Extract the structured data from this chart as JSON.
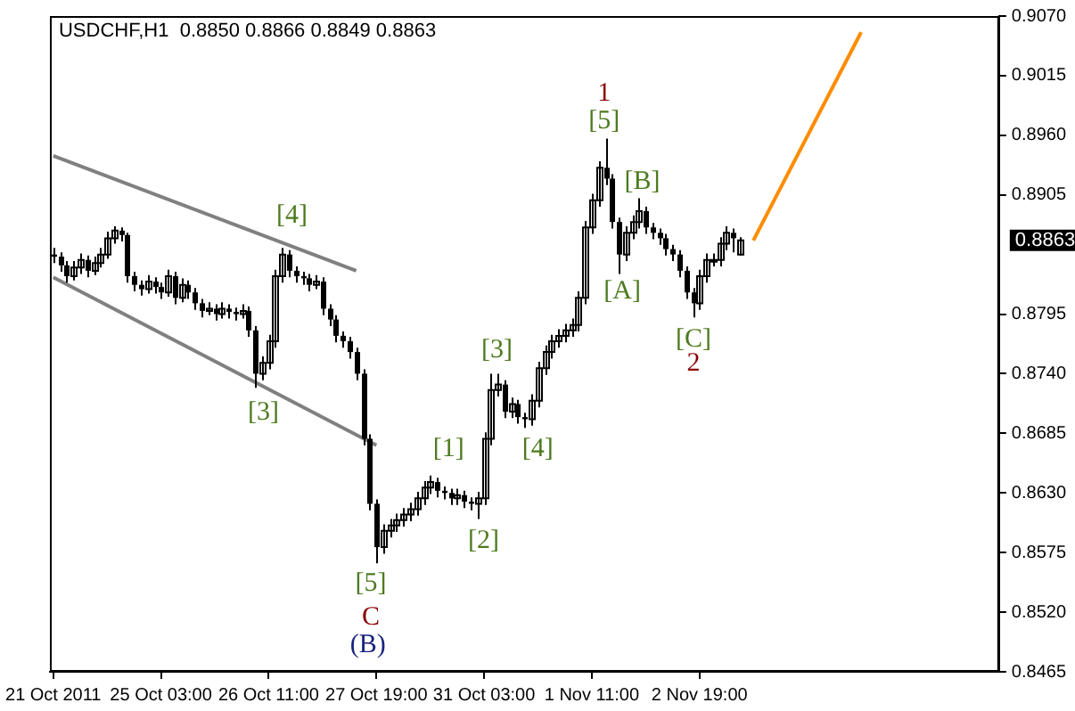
{
  "chart_data": {
    "type": "candlestick",
    "title": "USDCHF,H1  0.8850 0.8866 0.8849 0.8863",
    "color": "#000000",
    "categories": [
      "21 Oct 2011",
      null,
      null,
      null,
      null,
      null,
      null,
      null,
      null,
      null,
      null,
      null,
      null,
      null,
      null,
      null,
      "25 Oct 03:00",
      null,
      null,
      null,
      null,
      null,
      null,
      null,
      null,
      null,
      null,
      null,
      null,
      null,
      null,
      null,
      "26 Oct 11:00",
      null,
      null,
      null,
      null,
      null,
      null,
      null,
      null,
      null,
      null,
      null,
      null,
      null,
      null,
      null,
      "27 Oct 19:00",
      null,
      null,
      null,
      null,
      null,
      null,
      null,
      null,
      null,
      null,
      null,
      null,
      null,
      null,
      null,
      "31 Oct 03:00",
      null,
      null,
      null,
      null,
      null,
      null,
      null,
      null,
      null,
      null,
      null,
      null,
      null,
      null,
      null,
      "1 Nov 11:00",
      null,
      null,
      null,
      null,
      null,
      null,
      null,
      null,
      null,
      null,
      null,
      null,
      null,
      null,
      null,
      "2 Nov 19:00",
      null,
      null,
      null,
      null,
      null,
      null,
      null,
      null,
      null,
      null,
      null,
      null,
      null,
      null,
      null,
      null,
      null,
      null,
      null,
      null,
      null,
      null,
      null,
      null,
      null,
      null,
      null,
      null,
      null,
      null,
      null,
      null,
      null,
      null,
      null,
      null,
      null,
      null,
      null,
      null,
      null,
      null,
      null,
      null
    ],
    "ohlc": [
      [
        0.885,
        0.8856,
        0.8842,
        0.8848
      ],
      [
        0.8848,
        0.8852,
        0.8834,
        0.884
      ],
      [
        0.884,
        0.8844,
        0.8824,
        0.883
      ],
      [
        0.883,
        0.8844,
        0.8826,
        0.8838
      ],
      [
        0.8838,
        0.8851,
        0.8832,
        0.8845
      ],
      [
        0.8845,
        0.8849,
        0.8829,
        0.8835
      ],
      [
        0.8835,
        0.8848,
        0.8831,
        0.8842
      ],
      [
        0.8842,
        0.8856,
        0.8838,
        0.885
      ],
      [
        0.885,
        0.8871,
        0.8846,
        0.8865
      ],
      [
        0.8865,
        0.8876,
        0.886,
        0.8872
      ],
      [
        0.8872,
        0.8875,
        0.8862,
        0.8868
      ],
      [
        0.8868,
        0.887,
        0.8824,
        0.883
      ],
      [
        0.883,
        0.8834,
        0.8816,
        0.8822
      ],
      [
        0.8822,
        0.8826,
        0.8812,
        0.8818
      ],
      [
        0.8818,
        0.8831,
        0.8814,
        0.8825
      ],
      [
        0.8825,
        0.8829,
        0.8814,
        0.882
      ],
      [
        0.882,
        0.8824,
        0.8809,
        0.8815
      ],
      [
        0.8815,
        0.8836,
        0.8811,
        0.883
      ],
      [
        0.883,
        0.8834,
        0.8804,
        0.881
      ],
      [
        0.881,
        0.8828,
        0.8806,
        0.8822
      ],
      [
        0.8822,
        0.8826,
        0.8809,
        0.8815
      ],
      [
        0.8815,
        0.8819,
        0.8799,
        0.8805
      ],
      [
        0.8805,
        0.8809,
        0.8792,
        0.8798
      ],
      [
        0.8798,
        0.8806,
        0.8794,
        0.88
      ],
      [
        0.88,
        0.8804,
        0.8789,
        0.8795
      ],
      [
        0.8795,
        0.8806,
        0.8791,
        0.88
      ],
      [
        0.88,
        0.8804,
        0.8791,
        0.8797
      ],
      [
        0.8797,
        0.8801,
        0.8789,
        0.8795
      ],
      [
        0.8795,
        0.8804,
        0.8791,
        0.8798
      ],
      [
        0.8798,
        0.8802,
        0.8774,
        0.878
      ],
      [
        0.878,
        0.8784,
        0.8727,
        0.874
      ],
      [
        0.874,
        0.8756,
        0.8734,
        0.875
      ],
      [
        0.875,
        0.8776,
        0.8744,
        0.877
      ],
      [
        0.877,
        0.8836,
        0.8764,
        0.883
      ],
      [
        0.883,
        0.8856,
        0.8824,
        0.885
      ],
      [
        0.885,
        0.8854,
        0.8829,
        0.8835
      ],
      [
        0.8835,
        0.8839,
        0.8824,
        0.883
      ],
      [
        0.883,
        0.8834,
        0.8822,
        0.8828
      ],
      [
        0.8828,
        0.8832,
        0.8816,
        0.8822
      ],
      [
        0.8822,
        0.8831,
        0.8818,
        0.8825
      ],
      [
        0.8825,
        0.8829,
        0.8794,
        0.88
      ],
      [
        0.88,
        0.8804,
        0.8784,
        0.879
      ],
      [
        0.879,
        0.8794,
        0.8769,
        0.8775
      ],
      [
        0.8775,
        0.8779,
        0.8764,
        0.877
      ],
      [
        0.877,
        0.8774,
        0.8754,
        0.876
      ],
      [
        0.876,
        0.8764,
        0.8734,
        0.874
      ],
      [
        0.874,
        0.8744,
        0.8674,
        0.868
      ],
      [
        0.868,
        0.8684,
        0.8614,
        0.862
      ],
      [
        0.862,
        0.8624,
        0.8565,
        0.858
      ],
      [
        0.858,
        0.8601,
        0.8574,
        0.8595
      ],
      [
        0.8595,
        0.8606,
        0.8589,
        0.86
      ],
      [
        0.86,
        0.8611,
        0.8594,
        0.8605
      ],
      [
        0.8605,
        0.8616,
        0.8599,
        0.861
      ],
      [
        0.861,
        0.8621,
        0.8604,
        0.8615
      ],
      [
        0.8615,
        0.8631,
        0.8609,
        0.8625
      ],
      [
        0.8625,
        0.8641,
        0.8619,
        0.8635
      ],
      [
        0.8635,
        0.8646,
        0.8629,
        0.864
      ],
      [
        0.864,
        0.8644,
        0.8626,
        0.8632
      ],
      [
        0.8632,
        0.8636,
        0.8624,
        0.863
      ],
      [
        0.863,
        0.8634,
        0.8619,
        0.8625
      ],
      [
        0.8625,
        0.8634,
        0.8619,
        0.8628
      ],
      [
        0.8628,
        0.8632,
        0.8616,
        0.8622
      ],
      [
        0.8622,
        0.8626,
        0.8614,
        0.862
      ],
      [
        0.862,
        0.8631,
        0.8606,
        0.8625
      ],
      [
        0.8625,
        0.8686,
        0.8619,
        0.868
      ],
      [
        0.868,
        0.874,
        0.8674,
        0.8725
      ],
      [
        0.8725,
        0.874,
        0.8719,
        0.873
      ],
      [
        0.873,
        0.8734,
        0.8699,
        0.8705
      ],
      [
        0.8705,
        0.8718,
        0.8699,
        0.8712
      ],
      [
        0.8712,
        0.8716,
        0.8694,
        0.87
      ],
      [
        0.87,
        0.8704,
        0.869,
        0.8698
      ],
      [
        0.8698,
        0.8721,
        0.8692,
        0.8715
      ],
      [
        0.8715,
        0.8751,
        0.8709,
        0.8745
      ],
      [
        0.8745,
        0.8766,
        0.8739,
        0.876
      ],
      [
        0.876,
        0.8776,
        0.8754,
        0.877
      ],
      [
        0.877,
        0.8781,
        0.8764,
        0.8775
      ],
      [
        0.8775,
        0.8786,
        0.8769,
        0.878
      ],
      [
        0.878,
        0.8791,
        0.8774,
        0.8785
      ],
      [
        0.8785,
        0.8816,
        0.8779,
        0.881
      ],
      [
        0.881,
        0.8881,
        0.8804,
        0.8875
      ],
      [
        0.8875,
        0.8906,
        0.8869,
        0.89
      ],
      [
        0.89,
        0.8936,
        0.8894,
        0.893
      ],
      [
        0.893,
        0.8957,
        0.8914,
        0.892
      ],
      [
        0.892,
        0.8924,
        0.8874,
        0.888
      ],
      [
        0.888,
        0.8884,
        0.8832,
        0.885
      ],
      [
        0.885,
        0.8876,
        0.8844,
        0.887
      ],
      [
        0.887,
        0.8886,
        0.8864,
        0.888
      ],
      [
        0.888,
        0.8902,
        0.8874,
        0.889
      ],
      [
        0.889,
        0.8894,
        0.8869,
        0.8875
      ],
      [
        0.8875,
        0.8879,
        0.8864,
        0.887
      ],
      [
        0.887,
        0.8874,
        0.8859,
        0.8865
      ],
      [
        0.8865,
        0.8869,
        0.8849,
        0.8855
      ],
      [
        0.8855,
        0.8859,
        0.8844,
        0.885
      ],
      [
        0.885,
        0.8854,
        0.8829,
        0.8835
      ],
      [
        0.8835,
        0.8839,
        0.8809,
        0.8815
      ],
      [
        0.8815,
        0.8819,
        0.8792,
        0.8805
      ],
      [
        0.8805,
        0.8836,
        0.8799,
        0.883
      ],
      [
        0.883,
        0.8851,
        0.8824,
        0.8845
      ],
      [
        0.8845,
        0.8851,
        0.8839,
        0.8845
      ],
      [
        0.8845,
        0.8866,
        0.8839,
        0.886
      ],
      [
        0.886,
        0.8876,
        0.8854,
        0.887
      ],
      [
        0.887,
        0.8874,
        0.8852,
        0.8865
      ],
      [
        0.885,
        0.8866,
        0.8849,
        0.8863
      ],
      null,
      null,
      null,
      null,
      null,
      null,
      null,
      null,
      null,
      null,
      null,
      null,
      null,
      null,
      null,
      null,
      null,
      null,
      null,
      null,
      null,
      null,
      null,
      null,
      null,
      null,
      null,
      null,
      null,
      null,
      null,
      null,
      null,
      null,
      null,
      null,
      null,
      null
    ],
    "series": [
      {
        "type": "line",
        "color": "#808080",
        "values": [
          0.8941,
          null,
          null,
          null,
          null,
          null,
          null,
          null,
          null,
          null,
          null,
          null,
          null,
          null,
          null,
          null,
          null,
          null,
          null,
          null,
          null,
          null,
          null,
          null,
          null,
          null,
          null,
          null,
          null,
          null,
          null,
          null,
          null,
          null,
          null,
          null,
          null,
          null,
          null,
          null,
          null,
          null,
          null,
          null,
          null,
          0.8835,
          null,
          null,
          null,
          null,
          null,
          null,
          null,
          null,
          null,
          null,
          null,
          null,
          null,
          null,
          null,
          null,
          null,
          null,
          null,
          null,
          null,
          null,
          null,
          null,
          null,
          null,
          null,
          null,
          null,
          null,
          null,
          null,
          null,
          null,
          null,
          null,
          null,
          null,
          null,
          null,
          null,
          null,
          null,
          null,
          null,
          null,
          null,
          null,
          null,
          null,
          null,
          null,
          null,
          null,
          null,
          null,
          null,
          null,
          null,
          null,
          null,
          null,
          null,
          null,
          null,
          null,
          null,
          null,
          null,
          null,
          null,
          null,
          null,
          null,
          null,
          null,
          null,
          null,
          null,
          null,
          null,
          null,
          null,
          null,
          null,
          null,
          null,
          null,
          null,
          null,
          null,
          null,
          null,
          null,
          null
        ]
      },
      {
        "type": "line",
        "color": "#808080",
        "values": [
          0.8829,
          null,
          null,
          null,
          null,
          null,
          null,
          null,
          null,
          null,
          null,
          null,
          null,
          null,
          null,
          null,
          null,
          null,
          null,
          null,
          null,
          null,
          null,
          null,
          null,
          null,
          null,
          null,
          null,
          null,
          null,
          null,
          null,
          null,
          null,
          null,
          null,
          null,
          null,
          null,
          null,
          null,
          null,
          null,
          null,
          null,
          null,
          null,
          0.8674,
          null,
          null,
          null,
          null,
          null,
          null,
          null,
          null,
          null,
          null,
          null,
          null,
          null,
          null,
          null,
          null,
          null,
          null,
          null,
          null,
          null,
          null,
          null,
          null,
          null,
          null,
          null,
          null,
          null,
          null,
          null,
          null,
          null,
          null,
          null,
          null,
          null,
          null,
          null,
          null,
          null,
          null,
          null,
          null,
          null,
          null,
          null,
          null,
          null,
          null,
          null,
          null,
          null,
          null,
          null,
          null,
          null,
          null,
          null,
          null,
          null,
          null,
          null,
          null,
          null,
          null,
          null,
          null,
          null,
          null,
          null,
          null,
          null,
          null,
          null,
          null,
          null,
          null,
          null,
          null,
          null,
          null,
          null,
          null,
          null,
          null,
          null,
          null,
          null,
          null,
          null,
          null
        ]
      },
      {
        "type": "line",
        "color": "#ff8c00",
        "values": [
          null,
          null,
          null,
          null,
          null,
          null,
          null,
          null,
          null,
          null,
          null,
          null,
          null,
          null,
          null,
          null,
          null,
          null,
          null,
          null,
          null,
          null,
          null,
          null,
          null,
          null,
          null,
          null,
          null,
          null,
          null,
          null,
          null,
          null,
          null,
          null,
          null,
          null,
          null,
          null,
          null,
          null,
          null,
          null,
          null,
          null,
          null,
          null,
          null,
          null,
          null,
          null,
          null,
          null,
          null,
          null,
          null,
          null,
          null,
          null,
          null,
          null,
          null,
          null,
          null,
          null,
          null,
          null,
          null,
          null,
          null,
          null,
          null,
          null,
          null,
          null,
          null,
          null,
          null,
          null,
          null,
          null,
          null,
          null,
          null,
          null,
          null,
          null,
          null,
          null,
          null,
          null,
          null,
          null,
          null,
          null,
          null,
          null,
          null,
          null,
          null,
          null,
          null,
          null,
          0.8863,
          null,
          null,
          null,
          null,
          null,
          null,
          null,
          null,
          null,
          null,
          null,
          null,
          null,
          null,
          null,
          0.9055,
          null,
          null,
          null,
          null,
          null,
          null,
          null,
          null,
          null,
          null,
          null,
          null,
          null,
          null,
          null,
          null,
          null,
          null,
          null,
          null
        ]
      }
    ],
    "ylim": [
      0.8465,
      0.907
    ],
    "yticks": [
      0.8465,
      {
        "value": 0.852,
        "label": "0.8520"
      },
      0.8575,
      {
        "value": 0.863,
        "label": "0.8630"
      },
      0.8685,
      {
        "value": 0.874,
        "label": "0.8740"
      },
      0.8795,
      0.8905,
      {
        "value": 0.896,
        "label": "0.8960"
      },
      0.9015,
      {
        "value": 0.907,
        "label": "0.9070"
      }
    ],
    "grid": false,
    "legend": false,
    "annotations": [
      "[4]",
      "[3]",
      "[5]",
      "C",
      "(B)",
      "[1]",
      "[2]",
      "[3]",
      "[4]",
      "1",
      "[5]",
      "[B]",
      "[A]",
      "[C]",
      "2",
      "0.8863"
    ]
  }
}
